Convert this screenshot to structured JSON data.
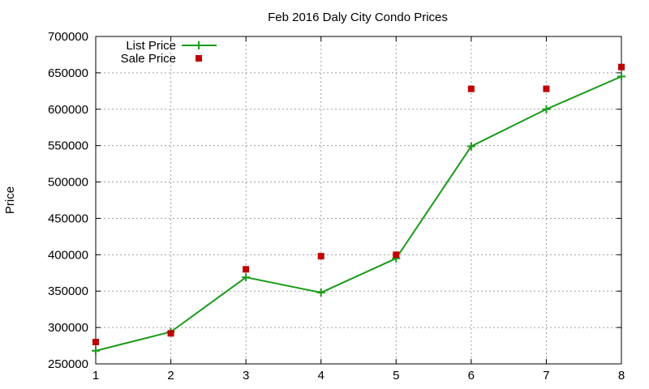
{
  "chart_data": {
    "type": "line",
    "title": "Feb 2016 Daly City Condo Prices",
    "xlabel": "",
    "ylabel": "Price",
    "xlim": [
      1,
      8
    ],
    "ylim": [
      250000,
      700000
    ],
    "x_ticks": [
      "1",
      "2",
      "3",
      "4",
      "5",
      "6",
      "7",
      "8"
    ],
    "y_ticks": [
      "250000",
      "300000",
      "350000",
      "400000",
      "450000",
      "500000",
      "550000",
      "600000",
      "650000",
      "700000"
    ],
    "grid": true,
    "legend_position": "top-left",
    "series": [
      {
        "name": "List Price",
        "style": "line-with-plus-markers",
        "color": "#1a9a1a",
        "x": [
          1,
          2,
          3,
          4,
          5,
          6,
          7,
          8
        ],
        "y": [
          268000,
          294000,
          369000,
          348000,
          395000,
          549000,
          600000,
          645000
        ]
      },
      {
        "name": "Sale Price",
        "style": "square-markers",
        "color": "#c00000",
        "x": [
          1,
          2,
          3,
          4,
          5,
          6,
          7,
          8
        ],
        "y": [
          280000,
          292000,
          380000,
          398000,
          400000,
          628000,
          628000,
          658000
        ]
      }
    ]
  }
}
